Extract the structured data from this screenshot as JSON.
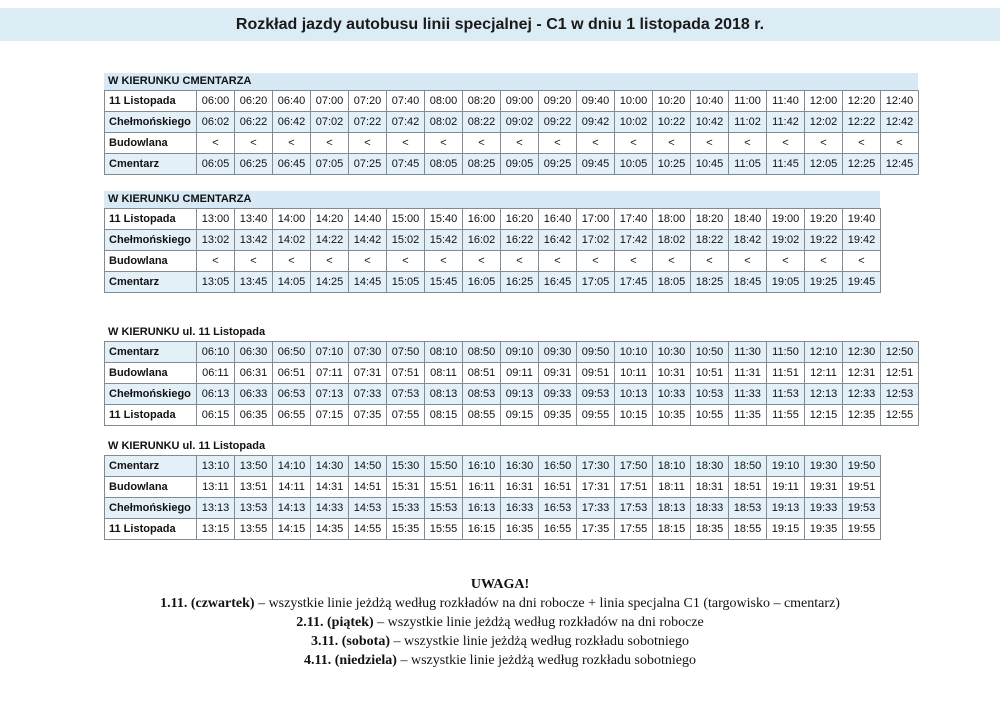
{
  "title": "Rozkład jazdy autobusu linii specjalnej - C1 w dniu 1 listopada 2018 r.",
  "tables": [
    {
      "heading": "W KIERUNKU CMENTARZA",
      "rows": [
        {
          "stop": "11 Listopada",
          "times": [
            "06:00",
            "06:20",
            "06:40",
            "07:00",
            "07:20",
            "07:40",
            "08:00",
            "08:20",
            "09:00",
            "09:20",
            "09:40",
            "10:00",
            "10:20",
            "10:40",
            "11:00",
            "11:40",
            "12:00",
            "12:20",
            "12:40"
          ]
        },
        {
          "stop": "Chełmońskiego",
          "times": [
            "06:02",
            "06:22",
            "06:42",
            "07:02",
            "07:22",
            "07:42",
            "08:02",
            "08:22",
            "09:02",
            "09:22",
            "09:42",
            "10:02",
            "10:22",
            "10:42",
            "11:02",
            "11:42",
            "12:02",
            "12:22",
            "12:42"
          ]
        },
        {
          "stop": "Budowlana",
          "times": [
            "<",
            "<",
            "<",
            "<",
            "<",
            "<",
            "<",
            "<",
            "<",
            "<",
            "<",
            "<",
            "<",
            "<",
            "<",
            "<",
            "<",
            "<",
            "<"
          ]
        },
        {
          "stop": "Cmentarz",
          "times": [
            "06:05",
            "06:25",
            "06:45",
            "07:05",
            "07:25",
            "07:45",
            "08:05",
            "08:25",
            "09:05",
            "09:25",
            "09:45",
            "10:05",
            "10:25",
            "10:45",
            "11:05",
            "11:45",
            "12:05",
            "12:25",
            "12:45"
          ]
        }
      ]
    },
    {
      "heading": "W KIERUNKU CMENTARZA",
      "rows": [
        {
          "stop": "11 Listopada",
          "times": [
            "13:00",
            "13:40",
            "14:00",
            "14:20",
            "14:40",
            "15:00",
            "15:40",
            "16:00",
            "16:20",
            "16:40",
            "17:00",
            "17:40",
            "18:00",
            "18:20",
            "18:40",
            "19:00",
            "19:20",
            "19:40"
          ]
        },
        {
          "stop": "Chełmońskiego",
          "times": [
            "13:02",
            "13:42",
            "14:02",
            "14:22",
            "14:42",
            "15:02",
            "15:42",
            "16:02",
            "16:22",
            "16:42",
            "17:02",
            "17:42",
            "18:02",
            "18:22",
            "18:42",
            "19:02",
            "19:22",
            "19:42"
          ]
        },
        {
          "stop": "Budowlana",
          "times": [
            "<",
            "<",
            "<",
            "<",
            "<",
            "<",
            "<",
            "<",
            "<",
            "<",
            "<",
            "<",
            "<",
            "<",
            "<",
            "<",
            "<",
            "<"
          ]
        },
        {
          "stop": "Cmentarz",
          "times": [
            "13:05",
            "13:45",
            "14:05",
            "14:25",
            "14:45",
            "15:05",
            "15:45",
            "16:05",
            "16:25",
            "16:45",
            "17:05",
            "17:45",
            "18:05",
            "18:25",
            "18:45",
            "19:05",
            "19:25",
            "19:45"
          ]
        }
      ]
    },
    {
      "heading": "W KIERUNKU ul. 11 Listopada",
      "rows": [
        {
          "stop": "Cmentarz",
          "times": [
            "06:10",
            "06:30",
            "06:50",
            "07:10",
            "07:30",
            "07:50",
            "08:10",
            "08:50",
            "09:10",
            "09:30",
            "09:50",
            "10:10",
            "10:30",
            "10:50",
            "11:30",
            "11:50",
            "12:10",
            "12:30",
            "12:50"
          ]
        },
        {
          "stop": "Budowlana",
          "times": [
            "06:11",
            "06:31",
            "06:51",
            "07:11",
            "07:31",
            "07:51",
            "08:11",
            "08:51",
            "09:11",
            "09:31",
            "09:51",
            "10:11",
            "10:31",
            "10:51",
            "11:31",
            "11:51",
            "12:11",
            "12:31",
            "12:51"
          ]
        },
        {
          "stop": "Chełmońskiego",
          "times": [
            "06:13",
            "06:33",
            "06:53",
            "07:13",
            "07:33",
            "07:53",
            "08:13",
            "08:53",
            "09:13",
            "09:33",
            "09:53",
            "10:13",
            "10:33",
            "10:53",
            "11:33",
            "11:53",
            "12:13",
            "12:33",
            "12:53"
          ]
        },
        {
          "stop": "11 Listopada",
          "times": [
            "06:15",
            "06:35",
            "06:55",
            "07:15",
            "07:35",
            "07:55",
            "08:15",
            "08:55",
            "09:15",
            "09:35",
            "09:55",
            "10:15",
            "10:35",
            "10:55",
            "11:35",
            "11:55",
            "12:15",
            "12:35",
            "12:55"
          ]
        }
      ]
    },
    {
      "heading": "W KIERUNKU ul. 11 Listopada",
      "rows": [
        {
          "stop": "Cmentarz",
          "times": [
            "13:10",
            "13:50",
            "14:10",
            "14:30",
            "14:50",
            "15:30",
            "15:50",
            "16:10",
            "16:30",
            "16:50",
            "17:30",
            "17:50",
            "18:10",
            "18:30",
            "18:50",
            "19:10",
            "19:30",
            "19:50"
          ]
        },
        {
          "stop": "Budowlana",
          "times": [
            "13:11",
            "13:51",
            "14:11",
            "14:31",
            "14:51",
            "15:31",
            "15:51",
            "16:11",
            "16:31",
            "16:51",
            "17:31",
            "17:51",
            "18:11",
            "18:31",
            "18:51",
            "19:11",
            "19:31",
            "19:51"
          ]
        },
        {
          "stop": "Chełmońskiego",
          "times": [
            "13:13",
            "13:53",
            "14:13",
            "14:33",
            "14:53",
            "15:33",
            "15:53",
            "16:13",
            "16:33",
            "16:53",
            "17:33",
            "17:53",
            "18:13",
            "18:33",
            "18:53",
            "19:13",
            "19:33",
            "19:53"
          ]
        },
        {
          "stop": "11 Listopada",
          "times": [
            "13:15",
            "13:55",
            "14:15",
            "14:35",
            "14:55",
            "15:35",
            "15:55",
            "16:15",
            "16:35",
            "16:55",
            "17:35",
            "17:55",
            "18:15",
            "18:35",
            "18:55",
            "19:15",
            "19:35",
            "19:55"
          ]
        }
      ]
    }
  ],
  "notes": {
    "heading": "UWAGA!",
    "lines": [
      {
        "date": "1.11. (czwartek)",
        "text": " – wszystkie linie jeżdżą według rozkładów na dni robocze + linia specjalna C1 (targowisko – cmentarz)"
      },
      {
        "date": "2.11. (piątek)",
        "text": " –  wszystkie linie jeżdżą według rozkładów na dni robocze"
      },
      {
        "date": "3.11. (sobota)",
        "text": " – wszystkie linie jeżdżą według rozkładu sobotniego"
      },
      {
        "date": "4.11. (niedziela)",
        "text": " – wszystkie linie jeżdżą według rozkładu sobotniego"
      }
    ]
  },
  "colors": {
    "header_band": "#d6e9f4",
    "row_shade": "#e3f0f7"
  }
}
